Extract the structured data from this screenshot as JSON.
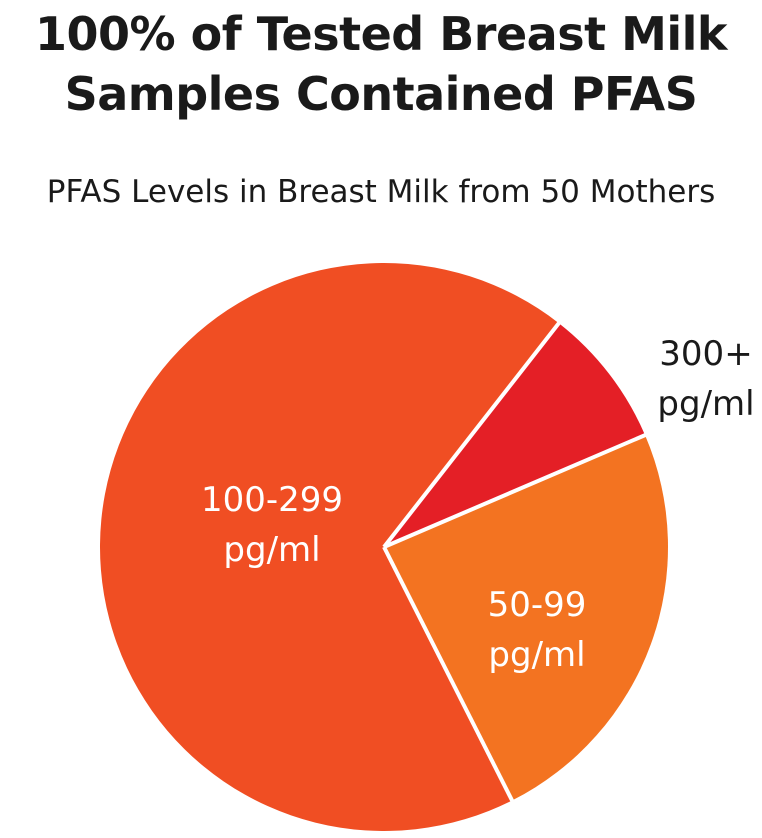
{
  "header": {
    "title_line1": "100% of Tested Breast Milk",
    "title_line2": "Samples Contained PFAS",
    "subtitle": "PFAS Levels in Breast Milk from 50 Mothers"
  },
  "colors": {
    "slice_100_299": "#F04E23",
    "slice_50_99": "#F37321",
    "slice_300_plus": "#E41F26",
    "separator": "#ffffff",
    "inside_label": "#ffffff",
    "outside_label": "#1a1a1a"
  },
  "chart_data": {
    "type": "pie",
    "title": "100% of Tested Breast Milk Samples Contained PFAS",
    "subtitle": "PFAS Levels in Breast Milk from 50 Mothers",
    "start_angle_deg": -52,
    "slices": [
      {
        "id": "s300",
        "line1": "300+",
        "line2": "pg/ml",
        "value": 4,
        "label_position": "outside"
      },
      {
        "id": "s50",
        "line1": "50-99",
        "line2": "pg/ml",
        "value": 12,
        "label_position": "inside"
      },
      {
        "id": "s100",
        "line1": "100-299",
        "line2": "pg/ml",
        "value": 34,
        "label_position": "inside"
      }
    ]
  }
}
